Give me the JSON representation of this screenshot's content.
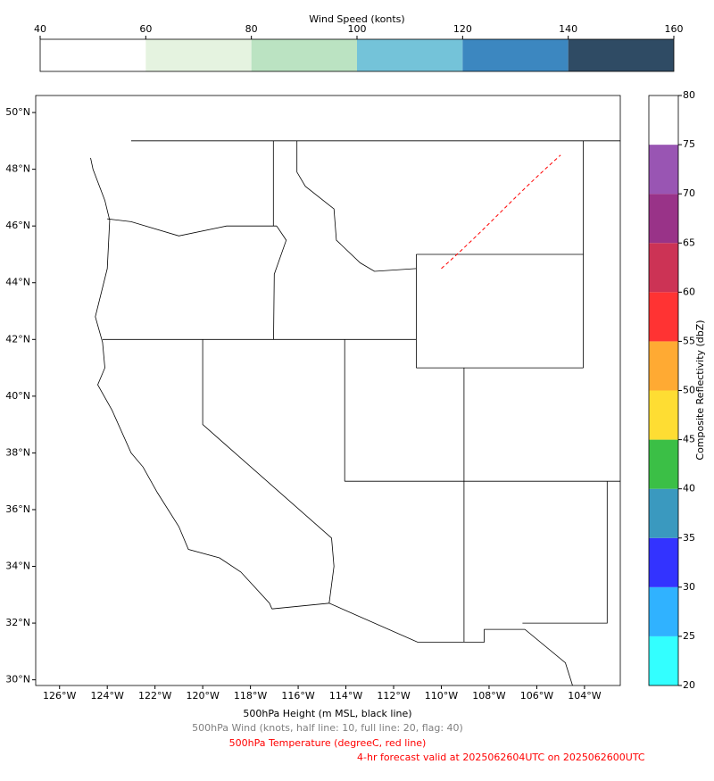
{
  "wind_colorbar": {
    "label": "Wind Speed (konts)",
    "ticks": [
      40,
      60,
      80,
      100,
      120,
      140,
      160
    ],
    "colors": [
      "#ffffff",
      "#e5f3e0",
      "#bbe3c2",
      "#74c3d9",
      "#3c87c0",
      "#2f4b64"
    ]
  },
  "reflectivity_colorbar": {
    "label": "Composite Reflectivity (dbZ)",
    "ticks": [
      20,
      25,
      30,
      35,
      40,
      45,
      50,
      55,
      60,
      65,
      70,
      75,
      80
    ],
    "colors": [
      "#33ffff",
      "#30b2ff",
      "#3333ff",
      "#3a99bf",
      "#3bbf46",
      "#fedd33",
      "#ffaa33",
      "#ff3333",
      "#cc3355",
      "#993388",
      "#9955b3",
      "#ffffff"
    ]
  },
  "map": {
    "xlim": [
      -127.0,
      -102.5
    ],
    "ylim": [
      29.8,
      50.6
    ],
    "xticks": [
      {
        "value": -126,
        "label": "126°W"
      },
      {
        "value": -124,
        "label": "124°W"
      },
      {
        "value": -122,
        "label": "122°W"
      },
      {
        "value": -120,
        "label": "120°W"
      },
      {
        "value": -118,
        "label": "118°W"
      },
      {
        "value": -116,
        "label": "116°W"
      },
      {
        "value": -114,
        "label": "114°W"
      },
      {
        "value": -112,
        "label": "112°W"
      },
      {
        "value": -110,
        "label": "110°W"
      },
      {
        "value": -108,
        "label": "108°W"
      },
      {
        "value": -106,
        "label": "106°W"
      },
      {
        "value": -104,
        "label": "104°W"
      }
    ],
    "yticks": [
      {
        "value": 30,
        "label": "30°N"
      },
      {
        "value": 32,
        "label": "32°N"
      },
      {
        "value": 34,
        "label": "34°N"
      },
      {
        "value": 36,
        "label": "36°N"
      },
      {
        "value": 38,
        "label": "38°N"
      },
      {
        "value": 40,
        "label": "40°N"
      },
      {
        "value": 42,
        "label": "42°N"
      },
      {
        "value": 44,
        "label": "44°N"
      },
      {
        "value": 46,
        "label": "46°N"
      },
      {
        "value": 48,
        "label": "48°N"
      },
      {
        "value": 50,
        "label": "50°N"
      }
    ]
  },
  "captions": [
    {
      "text": "500hPa Height (m MSL, black line)",
      "color": "#000000"
    },
    {
      "text": "500hPa Wind (knots, half line: 10, full line: 20, flag: 40)",
      "color": "#808080"
    },
    {
      "text": "500hPa Temperature (degreeC, red line)",
      "color": "#ff0000"
    },
    {
      "text": "4-hr forecast valid at 2025062604UTC on 2025062600UTC",
      "color": "#ff0000"
    }
  ]
}
